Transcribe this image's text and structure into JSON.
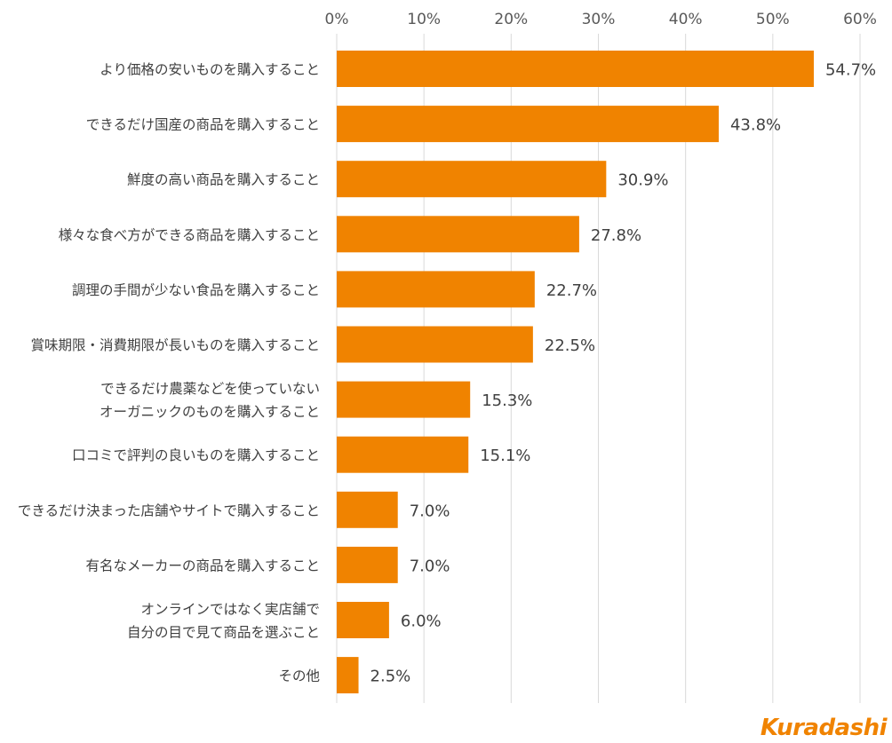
{
  "chart_data": {
    "type": "bar",
    "orientation": "horizontal",
    "categories": [
      "より価格の安いものを購入すること",
      "できるだけ国産の商品を購入すること",
      "鮮度の高い商品を購入すること",
      "様々な食べ方ができる商品を購入すること",
      "調理の手間が少ない食品を購入すること",
      "賞味期限・消費期限が長いものを購入すること",
      "できるだけ農薬などを使っていない\nオーガニックのものを購入すること",
      "口コミで評判の良いものを購入すること",
      "できるだけ決まった店舗やサイトで購入すること",
      "有名なメーカーの商品を購入すること",
      "オンラインではなく実店舗で\n自分の目で見て商品を選ぶこと",
      "その他"
    ],
    "values": [
      54.7,
      43.8,
      30.9,
      27.8,
      22.7,
      22.5,
      15.3,
      15.1,
      7.0,
      7.0,
      6.0,
      2.5
    ],
    "value_labels": [
      "54.7%",
      "43.8%",
      "30.9%",
      "27.8%",
      "22.7%",
      "22.5%",
      "15.3%",
      "15.1%",
      "7.0%",
      "7.0%",
      "6.0%",
      "2.5%"
    ],
    "xlim": [
      0,
      60
    ],
    "xticks": [
      "0%",
      "10%",
      "20%",
      "30%",
      "40%",
      "50%",
      "60%"
    ],
    "xaxis_position": "top",
    "grid": true,
    "bar_color": "#f08300"
  },
  "brand": {
    "logo_text": "Kuradashi",
    "logo_color": "#f08300"
  }
}
